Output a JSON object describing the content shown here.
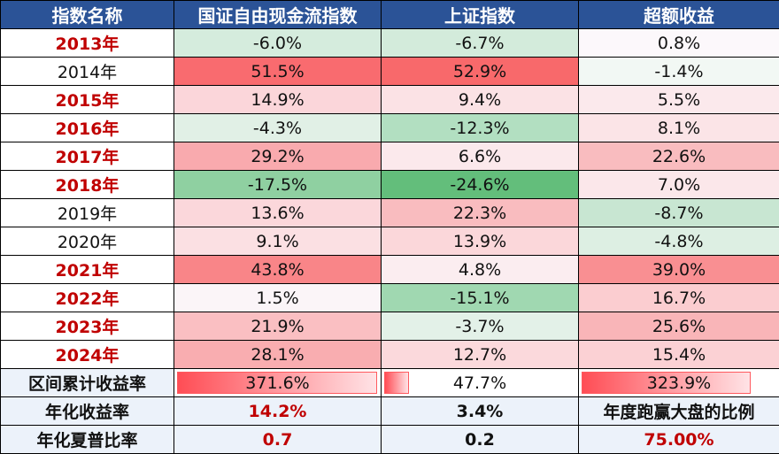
{
  "table": {
    "headers": [
      "指数名称",
      "国证自由现金流指数",
      "上证指数",
      "超额收益"
    ],
    "rows": [
      {
        "year": "2013年",
        "highlight": true,
        "a": "-6.0%",
        "b": "-6.7%",
        "c": "0.8%",
        "a_color": "#d5ecdd",
        "b_color": "#d3ebdb",
        "c_color": "#fcf8fb"
      },
      {
        "year": "2014年",
        "highlight": false,
        "a": "51.5%",
        "b": "52.9%",
        "c": "-1.4%",
        "a_color": "#f96b6f",
        "b_color": "#f8696b",
        "c_color": "#f2f8f4"
      },
      {
        "year": "2015年",
        "highlight": true,
        "a": "14.9%",
        "b": "9.4%",
        "c": "5.5%",
        "a_color": "#fbd6da",
        "b_color": "#fbe2e5",
        "c_color": "#fbe9ec"
      },
      {
        "year": "2016年",
        "highlight": true,
        "a": "-4.3%",
        "b": "-12.3%",
        "c": "8.1%",
        "a_color": "#e1f0e6",
        "b_color": "#b2dfc1",
        "c_color": "#fbe4e7"
      },
      {
        "year": "2017年",
        "highlight": true,
        "a": "29.2%",
        "b": "6.6%",
        "c": "22.6%",
        "a_color": "#f9aaae",
        "b_color": "#fbe9ec",
        "c_color": "#f9bcbf"
      },
      {
        "year": "2018年",
        "highlight": true,
        "a": "-17.5%",
        "b": "-24.6%",
        "c": "7.0%",
        "a_color": "#8fd0a1",
        "b_color": "#63be7b",
        "c_color": "#fbe7ea"
      },
      {
        "year": "2019年",
        "highlight": false,
        "a": "13.6%",
        "b": "22.3%",
        "c": "-8.7%",
        "a_color": "#fbd7db",
        "b_color": "#f9bcbf",
        "c_color": "#c8e6d2"
      },
      {
        "year": "2020年",
        "highlight": false,
        "a": "9.1%",
        "b": "13.9%",
        "c": "-4.8%",
        "a_color": "#fbe0e3",
        "b_color": "#fbd7da",
        "c_color": "#ddefe3"
      },
      {
        "year": "2021年",
        "highlight": true,
        "a": "43.8%",
        "b": "4.8%",
        "c": "39.0%",
        "a_color": "#f98588",
        "b_color": "#fbedf0",
        "c_color": "#f98f92"
      },
      {
        "year": "2022年",
        "highlight": true,
        "a": "1.5%",
        "b": "-15.1%",
        "c": "16.7%",
        "a_color": "#fbf5f8",
        "b_color": "#a0d8b1",
        "c_color": "#fbcdd0"
      },
      {
        "year": "2023年",
        "highlight": true,
        "a": "21.9%",
        "b": "-3.7%",
        "c": "25.6%",
        "a_color": "#fabfc2",
        "b_color": "#e3f1e8",
        "c_color": "#f9b5b8"
      },
      {
        "year": "2024年",
        "highlight": true,
        "a": "28.1%",
        "b": "12.7%",
        "c": "15.4%",
        "a_color": "#f9adb0",
        "b_color": "#fbd9dc",
        "c_color": "#fbd1d4"
      }
    ],
    "cumulative": {
      "label": "区间累计收益率",
      "a": "371.6%",
      "b": "47.7%",
      "c": "323.9%",
      "a_bar_pct": 100,
      "b_bar_pct": 12.8,
      "c_bar_pct": 87.2
    },
    "annual_return": {
      "label": "年化收益率",
      "a": "14.2%",
      "b": "3.4%",
      "c": "年度跑赢大盘的比例"
    },
    "sharpe": {
      "label": "年化夏普比率",
      "a": "0.7",
      "b": "0.2",
      "c": "75.00%"
    }
  },
  "colors": {
    "header_bg": "#2b5397",
    "highlight_red": "#c00000",
    "summary_bg": "#ecf2fa"
  }
}
